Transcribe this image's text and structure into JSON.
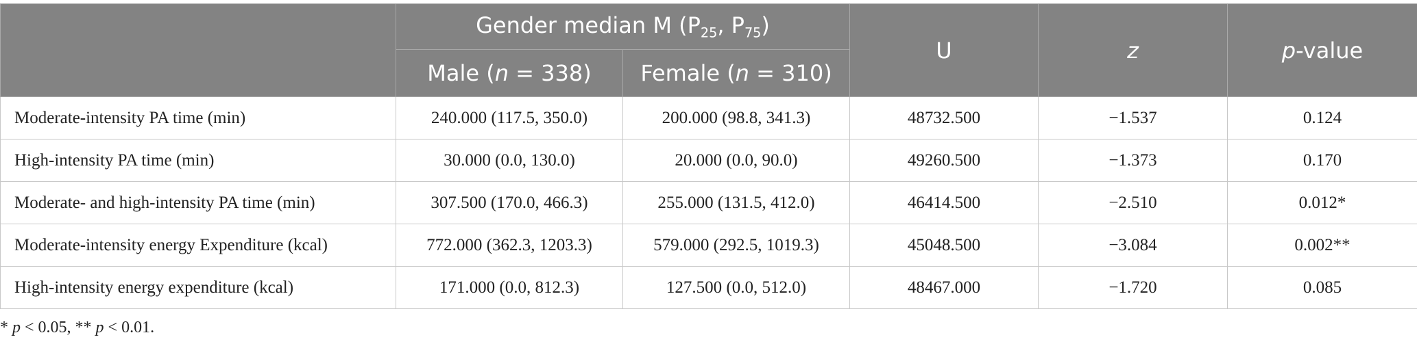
{
  "table": {
    "header": {
      "group": [
        {
          "text": "Gender median M (P"
        },
        {
          "text": "25",
          "style": "sub"
        },
        {
          "text": ", P"
        },
        {
          "text": "75",
          "style": "sub"
        },
        {
          "text": ")"
        }
      ],
      "male": [
        {
          "text": "Male ("
        },
        {
          "text": "n",
          "style": "italic"
        },
        {
          "text": " = 338)"
        }
      ],
      "female": [
        {
          "text": "Female ("
        },
        {
          "text": "n",
          "style": "italic"
        },
        {
          "text": " = 310)"
        }
      ],
      "u": [
        {
          "text": "U"
        }
      ],
      "z": [
        {
          "text": "z",
          "style": "italic"
        }
      ],
      "p": [
        {
          "text": "p",
          "style": "italic"
        },
        {
          "text": "-value"
        }
      ]
    },
    "rows": [
      [
        "Moderate-intensity PA time (min)",
        "240.000 (117.5, 350.0)",
        "200.000 (98.8, 341.3)",
        "48732.500",
        "−1.537",
        "0.124"
      ],
      [
        "High-intensity PA time (min)",
        "30.000 (0.0, 130.0)",
        "20.000 (0.0, 90.0)",
        "49260.500",
        "−1.373",
        "0.170"
      ],
      [
        "Moderate- and high-intensity PA time (min)",
        "307.500 (170.0, 466.3)",
        "255.000 (131.5, 412.0)",
        "46414.500",
        "−2.510",
        "0.012*"
      ],
      [
        "Moderate-intensity energy Expenditure (kcal)",
        "772.000 (362.3, 1203.3)",
        "579.000 (292.5, 1019.3)",
        "45048.500",
        "−3.084",
        "0.002**"
      ],
      [
        "High-intensity energy expenditure (kcal)",
        "171.000 (0.0, 812.3)",
        "127.500 (0.0, 512.0)",
        "48467.000",
        "−1.720",
        "0.085"
      ]
    ]
  },
  "footnote": [
    {
      "text": "* "
    },
    {
      "text": "p",
      "style": "italic"
    },
    {
      "text": " < 0.05, ** "
    },
    {
      "text": "p",
      "style": "italic"
    },
    {
      "text": " < 0.01."
    }
  ]
}
